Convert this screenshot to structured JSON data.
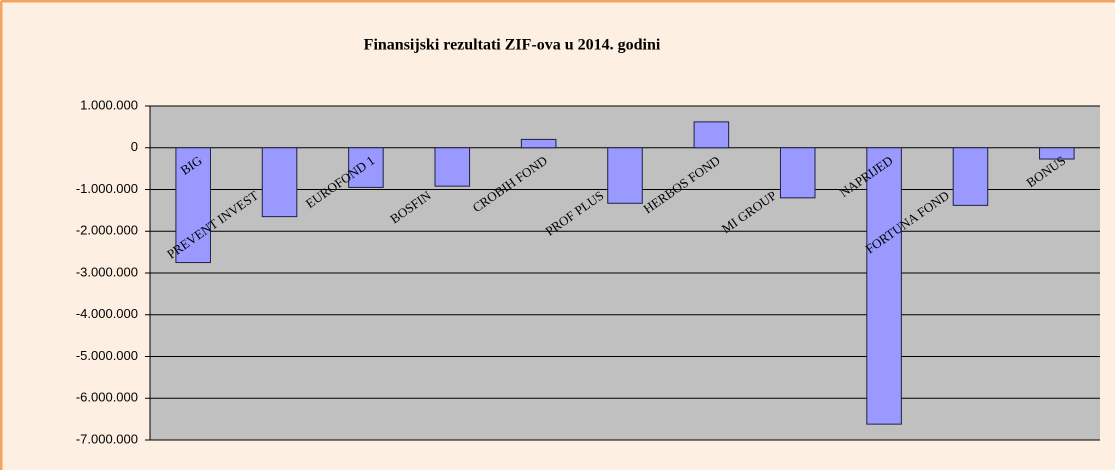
{
  "chart_data": {
    "type": "bar",
    "title": "Finansijski rezultati ZIF-ova u 2014. godini",
    "categories": [
      "BIG",
      "PREVENT INVEST",
      "EUROFOND 1",
      "BOSFIN",
      "CROBIH FOND",
      "PROF PLUS",
      "HERBOS FOND",
      "MI GROUP",
      "NAPRIJED",
      "FORTUNA FOND",
      "BONUS"
    ],
    "values": [
      -2750000,
      -1650000,
      -950000,
      -920000,
      200000,
      -1330000,
      620000,
      -1200000,
      -6620000,
      -1380000,
      -270000
    ],
    "color": "#9999ff",
    "ylim": [
      -7000000,
      1000000
    ],
    "yticks": [
      {
        "value": -7000000,
        "label": "-7.000.000"
      },
      {
        "value": -6000000,
        "label": "-6.000.000"
      },
      {
        "value": -5000000,
        "label": "-5.000.000"
      },
      {
        "value": -4000000,
        "label": "-4.000.000"
      },
      {
        "value": -3000000,
        "label": "-3.000.000"
      },
      {
        "value": -2000000,
        "label": "-2.000.000"
      },
      {
        "value": -1000000,
        "label": "-1.000.000"
      },
      0,
      {
        "value": 1000000,
        "label": "1.000.000"
      }
    ],
    "grid": true
  }
}
